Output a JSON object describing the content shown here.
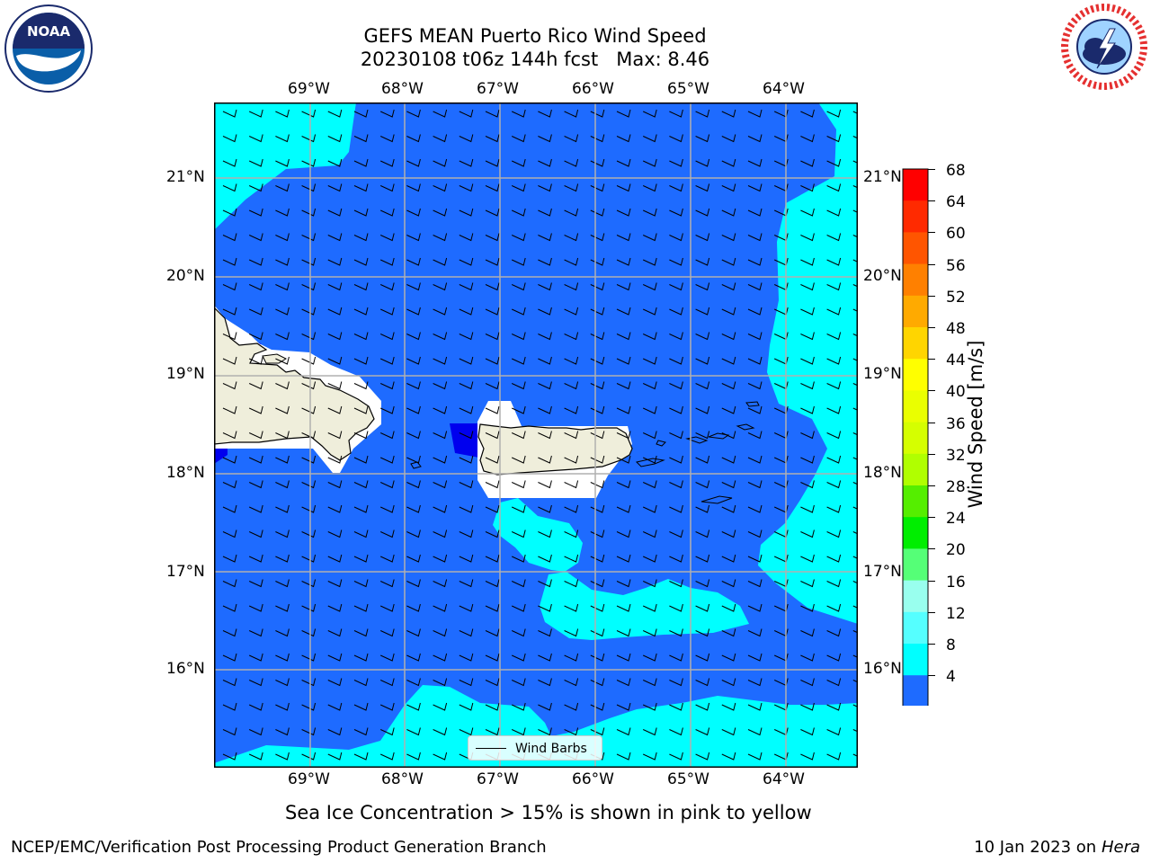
{
  "title": {
    "line1": "GEFS MEAN Puerto Rico Wind Speed",
    "line2": "20230108 t06z 144h fcst   Max: 8.46"
  },
  "logos": {
    "left": "NOAA",
    "right": "NATIONAL WEATHER SERVICE"
  },
  "map": {
    "lon_labels": [
      "69°W",
      "68°W",
      "67°W",
      "66°W",
      "65°W",
      "64°W"
    ],
    "lat_labels": [
      "21°N",
      "20°N",
      "19°N",
      "18°N",
      "17°N",
      "16°N"
    ],
    "legend": "Wind Barbs",
    "colors": {
      "band_4_8": "#1e6bff",
      "band_8_12": "#00ffff",
      "below_4": "#0000ee",
      "land": "#efeedb",
      "grid": "#b0b0b0"
    }
  },
  "colorbar": {
    "label": "Wind Speed [m/s]",
    "ticks": [
      "68",
      "64",
      "60",
      "56",
      "52",
      "48",
      "44",
      "40",
      "36",
      "32",
      "28",
      "24",
      "20",
      "16",
      "12",
      "8",
      "4"
    ],
    "colors": [
      "#ff0000",
      "#ff2a00",
      "#ff5500",
      "#ff8000",
      "#ffaa00",
      "#ffd500",
      "#ffff00",
      "#eaff00",
      "#d5ff00",
      "#b0ff00",
      "#55ee00",
      "#00ee00",
      "#55ff77",
      "#99ffee",
      "#55ffff",
      "#00ffff",
      "#1e6bff",
      "#0000ee"
    ]
  },
  "note": "Sea Ice Concentration > 15% is shown in pink to yellow",
  "footer": {
    "left": "NCEP/EMC/Verification Post Processing Product Generation Branch",
    "right_date": "10 Jan 2023 on",
    "right_host": "Hera"
  }
}
